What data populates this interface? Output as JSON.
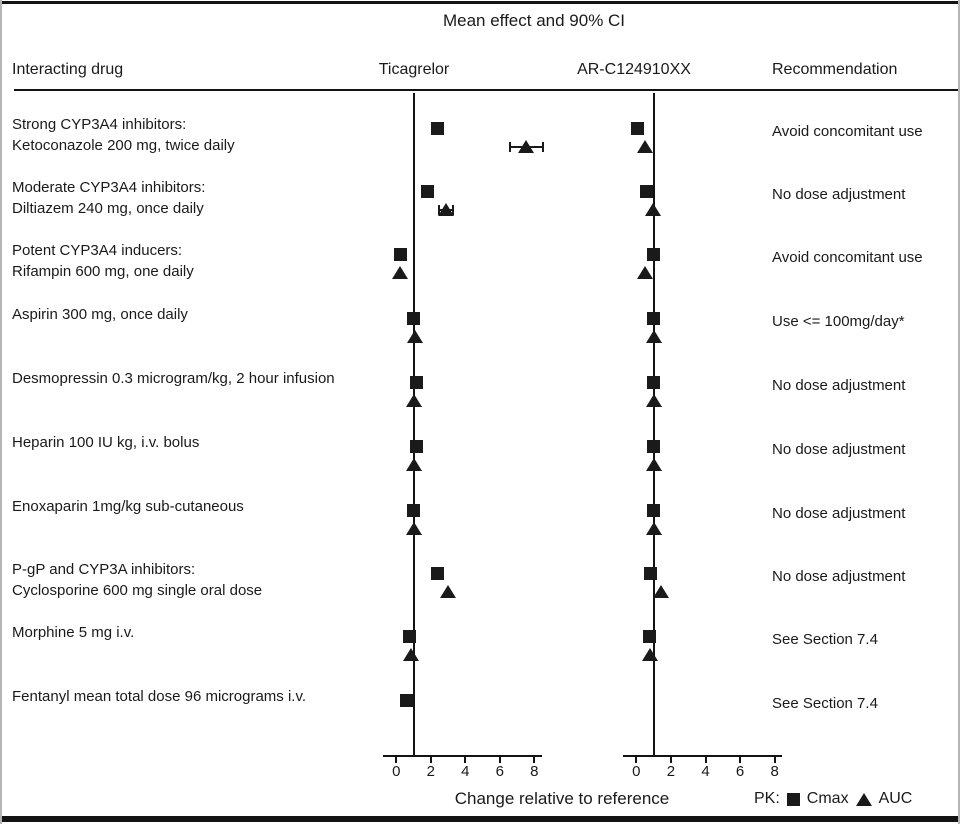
{
  "title": "Mean effect and 90% CI",
  "columns": {
    "interacting_drug": "Interacting drug",
    "panel1": "Ticagrelor",
    "panel2": "AR-C124910XX",
    "recommendation": "Recommendation"
  },
  "x_axis": {
    "label": "Change relative to reference",
    "ticks": [
      0,
      2,
      4,
      6,
      8
    ]
  },
  "legend": {
    "prefix": "PK:",
    "cmax_label": "Cmax",
    "auc_label": "AUC",
    "cmax_marker": "filled-square",
    "auc_marker": "filled-triangle"
  },
  "colors": {
    "ink": "#1a1a1a",
    "background": "#ffffff"
  },
  "chart_data": {
    "type": "scatter",
    "subtype": "forest-plot-two-panels",
    "title": "Mean effect and 90% CI",
    "xlabel": "Change relative to reference",
    "xlim": [
      -0.8,
      8.5
    ],
    "reference_line": 1,
    "panels": [
      "Ticagrelor",
      "AR-C124910XX"
    ],
    "series_markers": {
      "cmax": "square",
      "auc": "triangle"
    },
    "rows": [
      {
        "label_lines": [
          "Strong CYP3A4 inhibitors:",
          "Ketoconazole 200 mg, twice daily"
        ],
        "recommendation": "Avoid concomitant use",
        "values": [
          {
            "cmax": 2.4,
            "auc": 7.5,
            "auc_ci": [
              6.6,
              8.5
            ]
          },
          {
            "cmax": 0.1,
            "auc": 0.5,
            "auc_ci": null
          }
        ]
      },
      {
        "label_lines": [
          "Moderate CYP3A4 inhibitors:",
          "Diltiazem 240 mg, once daily"
        ],
        "recommendation": "No dose adjustment",
        "values": [
          {
            "cmax": 1.85,
            "auc": 2.9,
            "auc_ci": [
              2.5,
              3.3
            ]
          },
          {
            "cmax": 0.6,
            "auc": 0.95,
            "auc_ci": null
          }
        ]
      },
      {
        "label_lines": [
          "Potent CYP3A4 inducers:",
          "Rifampin 600 mg, one daily"
        ],
        "recommendation": "Avoid concomitant use",
        "values": [
          {
            "cmax": 0.27,
            "auc": 0.23,
            "auc_ci": null
          },
          {
            "cmax": 1.05,
            "auc": 0.5,
            "auc_ci": null
          }
        ]
      },
      {
        "label_lines": [
          "Aspirin 300 mg, once daily"
        ],
        "recommendation": "Use <= 100mg/day*",
        "values": [
          {
            "cmax": 1.05,
            "auc": 1.1,
            "auc_ci": null
          },
          {
            "cmax": 1.0,
            "auc": 1.0,
            "auc_ci": null
          }
        ]
      },
      {
        "label_lines": [
          "Desmopressin 0.3  microgram/kg, 2 hour infusion"
        ],
        "recommendation": "No dose adjustment",
        "values": [
          {
            "cmax": 1.2,
            "auc": 1.0,
            "auc_ci": null
          },
          {
            "cmax": 1.0,
            "auc": 1.05,
            "auc_ci": null
          }
        ]
      },
      {
        "label_lines": [
          "Heparin 100 IU kg, i.v. bolus"
        ],
        "recommendation": "No dose adjustment",
        "values": [
          {
            "cmax": 1.2,
            "auc": 1.05,
            "auc_ci": null
          },
          {
            "cmax": 1.0,
            "auc": 1.0,
            "auc_ci": null
          }
        ]
      },
      {
        "label_lines": [
          "Enoxaparin 1mg/kg sub-cutaneous"
        ],
        "recommendation": "No dose adjustment",
        "values": [
          {
            "cmax": 1.05,
            "auc": 1.0,
            "auc_ci": null
          },
          {
            "cmax": 1.05,
            "auc": 1.0,
            "auc_ci": null
          }
        ]
      },
      {
        "label_lines": [
          "P-gP and CYP3A inhibitors:",
          "Cyclosporine 600 mg single oral dose"
        ],
        "recommendation": "No dose adjustment",
        "values": [
          {
            "cmax": 2.4,
            "auc": 3.0,
            "auc_ci": null
          },
          {
            "cmax": 0.85,
            "auc": 1.45,
            "auc_ci": null
          }
        ]
      },
      {
        "label_lines": [
          "Morphine 5 mg i.v."
        ],
        "recommendation": "See Section 7.4",
        "values": [
          {
            "cmax": 0.8,
            "auc": 0.85,
            "auc_ci": null
          },
          {
            "cmax": 0.8,
            "auc": 0.8,
            "auc_ci": null
          }
        ]
      },
      {
        "label_lines": [
          "Fentanyl mean total dose 96 micrograms i.v."
        ],
        "recommendation": "See Section 7.4",
        "values": [
          {
            "cmax": 0.6,
            "auc": null,
            "auc_ci": null
          },
          {
            "cmax": null,
            "auc": null,
            "auc_ci": null
          }
        ]
      }
    ]
  }
}
